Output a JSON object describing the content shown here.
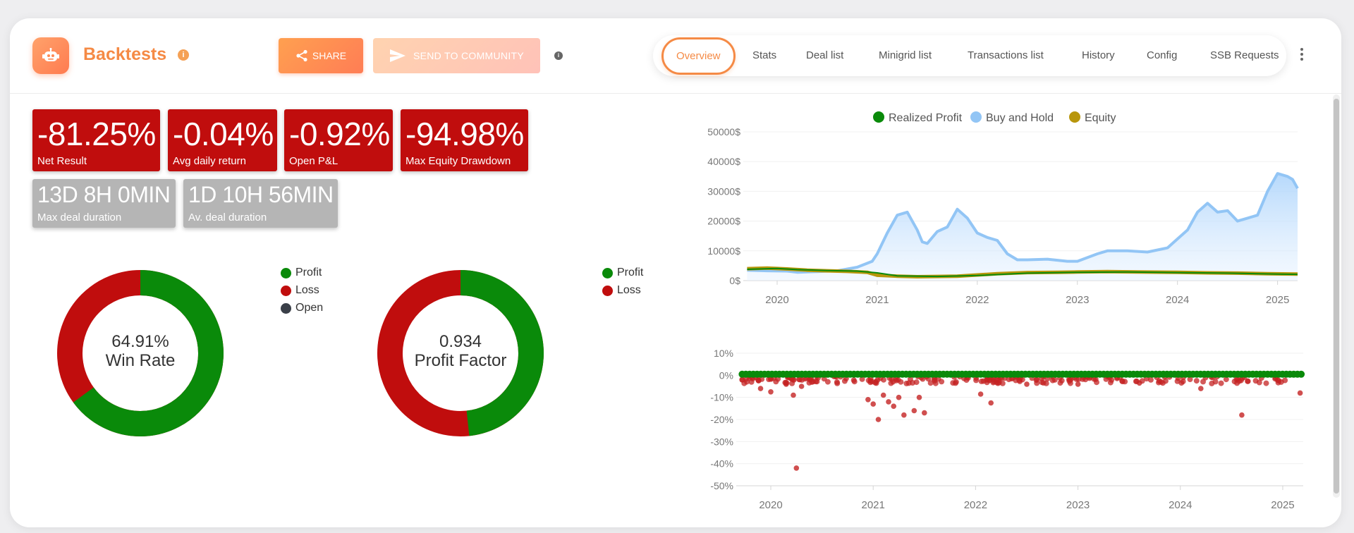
{
  "header": {
    "title": "Backtests",
    "info_icon": "i",
    "share_label": "SHARE",
    "send_label": "SEND TO COMMUNITY",
    "small_info": "i"
  },
  "tabs": [
    {
      "label": "Overview",
      "active": true
    },
    {
      "label": "Stats"
    },
    {
      "label": "Deal list"
    },
    {
      "label": "Minigrid list"
    },
    {
      "label": "Transactions list"
    },
    {
      "label": "History"
    },
    {
      "label": "Config"
    },
    {
      "label": "SSB Requests"
    }
  ],
  "stats": [
    {
      "value": "-81.25%",
      "label": "Net Result",
      "color": "#c00d0d"
    },
    {
      "value": "-0.04%",
      "label": "Avg daily return",
      "color": "#c00d0d"
    },
    {
      "value": "-0.92%",
      "label": "Open P&L",
      "color": "#c00d0d"
    },
    {
      "value": "-94.98%",
      "label": "Max Equity Drawdown",
      "color": "#c00d0d"
    },
    {
      "value": "13D 8H 0MIN",
      "label": "Max deal duration",
      "color": "#b5b5b5"
    },
    {
      "value": "1D 10H 56MIN",
      "label": "Av. deal duration",
      "color": "#b5b5b5"
    }
  ],
  "win_rate": {
    "value": "64.91%",
    "label": "Win Rate",
    "profit_fraction": 0.6491,
    "legend": [
      {
        "label": "Profit",
        "color": "#0a8a0a"
      },
      {
        "label": "Loss",
        "color": "#c00d0d"
      },
      {
        "label": "Open",
        "color": "#3a3f48"
      }
    ]
  },
  "profit_factor": {
    "value": "0.934",
    "label": "Profit Factor",
    "profit_fraction": 0.483,
    "legend": [
      {
        "label": "Profit",
        "color": "#0a8a0a"
      },
      {
        "label": "Loss",
        "color": "#c00d0d"
      }
    ]
  },
  "chart_data": [
    {
      "type": "area",
      "legend": [
        {
          "name": "Realized Profit",
          "color": "#0a8a0a"
        },
        {
          "name": "Buy and Hold",
          "color": "#92c5f5"
        },
        {
          "name": "Equity",
          "color": "#b8960c"
        }
      ],
      "legend_placement": "top-center",
      "y_ticks": [
        "0$",
        "10000$",
        "20000$",
        "30000$",
        "40000$",
        "50000$"
      ],
      "ylim": [
        0,
        50000
      ],
      "x_ticks": [
        "2020",
        "2021",
        "2022",
        "2023",
        "2024",
        "2025"
      ],
      "xlim": [
        2019.69,
        2025.2
      ],
      "grid": true,
      "series": [
        {
          "name": "Buy and Hold",
          "x": [
            2019.7,
            2019.9,
            2020.1,
            2020.2,
            2020.4,
            2020.6,
            2020.8,
            2020.95,
            2021.0,
            2021.1,
            2021.2,
            2021.3,
            2021.4,
            2021.45,
            2021.5,
            2021.6,
            2021.7,
            2021.8,
            2021.9,
            2022.0,
            2022.1,
            2022.2,
            2022.3,
            2022.4,
            2022.5,
            2022.7,
            2022.9,
            2023.0,
            2023.2,
            2023.3,
            2023.5,
            2023.7,
            2023.9,
            2024.0,
            2024.1,
            2024.2,
            2024.3,
            2024.4,
            2024.5,
            2024.6,
            2024.7,
            2024.8,
            2024.9,
            2025.0,
            2025.1,
            2025.15,
            2025.2
          ],
          "y": [
            3500,
            3300,
            3200,
            2800,
            3000,
            3300,
            4500,
            6500,
            9000,
            16000,
            22000,
            23000,
            17000,
            13000,
            12500,
            16500,
            18000,
            24000,
            21000,
            16000,
            14500,
            13500,
            9000,
            7000,
            7000,
            7200,
            6500,
            6500,
            9000,
            10000,
            10000,
            9600,
            11000,
            14000,
            17000,
            23000,
            26000,
            23000,
            23500,
            20000,
            21000,
            22000,
            30000,
            36000,
            35000,
            34000,
            31000
          ]
        },
        {
          "name": "Equity",
          "x": [
            2019.7,
            2019.9,
            2020.1,
            2020.3,
            2020.5,
            2020.7,
            2020.9,
            2021.0,
            2021.2,
            2021.4,
            2021.6,
            2021.8,
            2022.0,
            2022.2,
            2022.5,
            2022.8,
            2023.0,
            2023.3,
            2023.6,
            2024.0,
            2024.3,
            2024.6,
            2024.9,
            2025.2
          ],
          "y": [
            4000,
            4200,
            3900,
            3500,
            3300,
            3100,
            2800,
            1800,
            1500,
            1300,
            1400,
            1500,
            1900,
            2300,
            2700,
            2800,
            2900,
            3000,
            2900,
            2800,
            2600,
            2500,
            2300,
            2200
          ]
        },
        {
          "name": "Realized Profit",
          "x": [
            2019.7,
            2020.0,
            2020.2,
            2020.5,
            2020.8,
            2021.0,
            2021.2,
            2021.6,
            2022.0,
            2022.5,
            2023.0,
            2023.5,
            2024.0,
            2024.5,
            2025.0,
            2025.2
          ],
          "y": [
            3800,
            4100,
            3700,
            3400,
            3200,
            2600,
            1600,
            1400,
            1700,
            2500,
            2800,
            2900,
            2700,
            2500,
            2200,
            2100
          ]
        }
      ]
    },
    {
      "type": "scatter",
      "y_ticks": [
        "10%",
        "0%",
        "-10%",
        "-20%",
        "-30%",
        "-40%",
        "-50%"
      ],
      "ylim": [
        -50,
        10
      ],
      "x_ticks": [
        "2020",
        "2021",
        "2022",
        "2023",
        "2024",
        "2025"
      ],
      "xlim": [
        2019.69,
        2025.2
      ],
      "grid": true,
      "series": [
        {
          "name": "Profit",
          "color": "#0a8a0a",
          "x_range": [
            2019.72,
            2025.18
          ],
          "y": 0.5
        },
        {
          "name": "Loss",
          "color": "#c42323",
          "points": [
            [
              2020.25,
              -42
            ],
            [
              2020.22,
              -9
            ],
            [
              2020.0,
              -7.5
            ],
            [
              2020.3,
              -5
            ],
            [
              2019.9,
              -6
            ],
            [
              2021.05,
              -20
            ],
            [
              2021.0,
              -13
            ],
            [
              2020.95,
              -11
            ],
            [
              2021.2,
              -14
            ],
            [
              2021.1,
              -9
            ],
            [
              2021.3,
              -18
            ],
            [
              2021.4,
              -16
            ],
            [
              2021.45,
              -10
            ],
            [
              2021.5,
              -17
            ],
            [
              2022.15,
              -12.5
            ],
            [
              2022.05,
              -8.5
            ],
            [
              2024.6,
              -18
            ],
            [
              2024.2,
              -6
            ],
            [
              2025.17,
              -8
            ],
            [
              2021.15,
              -12
            ],
            [
              2021.25,
              -10
            ],
            [
              2020.15,
              -4
            ],
            [
              2022.5,
              -4
            ],
            [
              2023.0,
              -4
            ],
            [
              2023.6,
              -3.5
            ]
          ]
        }
      ]
    }
  ]
}
